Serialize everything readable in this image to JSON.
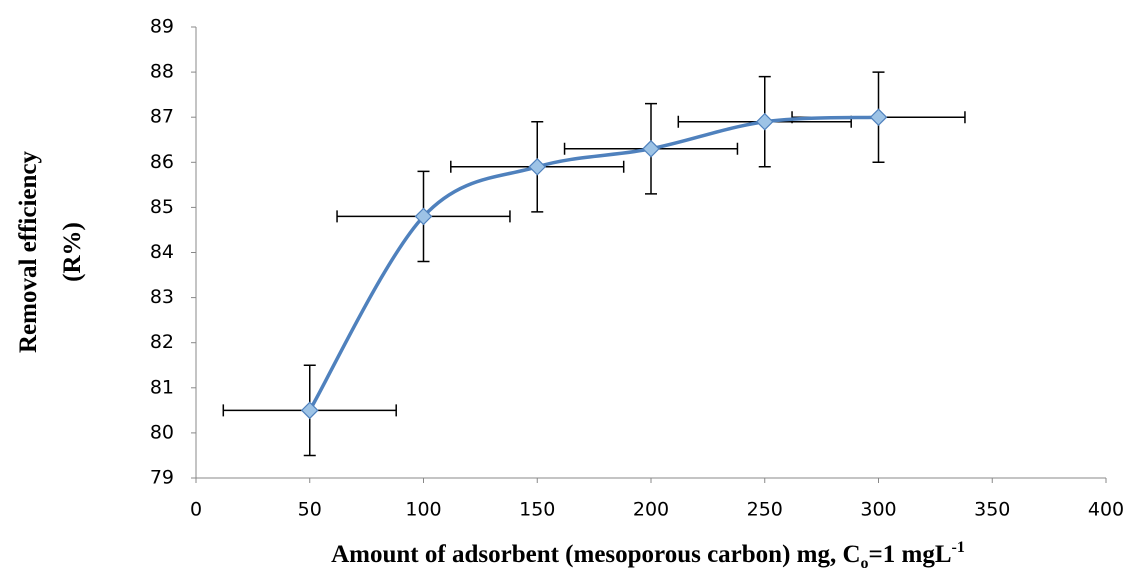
{
  "chart_data": {
    "type": "line",
    "x_label": [
      "Amount of adsorbent (mesoporous carbon) mg, C",
      "o",
      "=1 mgL",
      "-1"
    ],
    "y_label": [
      "Removal efficiency",
      "(R%)"
    ],
    "x": [
      50,
      100,
      150,
      200,
      250,
      300
    ],
    "series": [
      {
        "color": "#4f81bd",
        "marker_color": "#9dc3e6",
        "values": [
          80.5,
          84.8,
          85.9,
          86.3,
          86.9,
          87.0
        ],
        "y_errors": [
          1,
          1,
          1,
          1,
          1,
          1
        ],
        "x_errors": [
          38,
          38,
          38,
          38,
          38,
          38
        ]
      }
    ],
    "xlim": [
      0,
      400
    ],
    "xticks": [
      0,
      50,
      100,
      150,
      200,
      250,
      300,
      350,
      400
    ],
    "ylim": [
      79,
      89
    ],
    "yticks": [
      79,
      80,
      81,
      82,
      83,
      84,
      85,
      86,
      87,
      88,
      89
    ],
    "grid": false,
    "smooth": true
  }
}
